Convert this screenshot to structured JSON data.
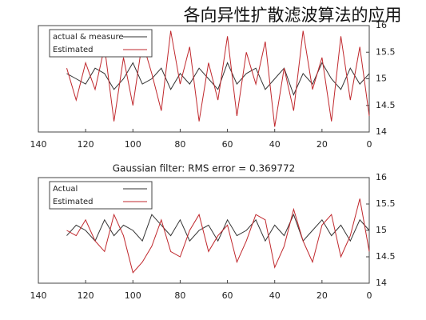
{
  "headline": "各向异性扩散滤波算法的应用",
  "chart_data": [
    {
      "type": "line",
      "x": [
        0,
        4,
        8,
        12,
        16,
        20,
        24,
        28,
        32,
        36,
        40,
        44,
        48,
        52,
        56,
        60,
        64,
        68,
        72,
        76,
        80,
        84,
        88,
        92,
        96,
        100,
        104,
        108,
        112,
        116,
        120,
        124,
        128
      ],
      "xlim": [
        140,
        0
      ],
      "xticks": [
        140,
        120,
        100,
        80,
        60,
        40,
        20,
        0
      ],
      "ylim": [
        14,
        16
      ],
      "yticks": [
        16,
        15.5,
        15,
        14.5,
        14
      ],
      "legend": "top-left",
      "series": [
        {
          "name": "actual & measure",
          "color": "#333333",
          "values": [
            15.1,
            14.9,
            15.2,
            14.8,
            15.0,
            15.3,
            14.9,
            15.1,
            14.7,
            15.2,
            15.0,
            14.8,
            15.2,
            15.1,
            14.9,
            15.3,
            14.8,
            15.0,
            15.2,
            14.9,
            15.1,
            14.8,
            15.2,
            15.0,
            14.9,
            15.3,
            15.0,
            14.8,
            15.1,
            15.2,
            14.9,
            15.0,
            15.1
          ]
        },
        {
          "name": "Estimated",
          "color": "#c0282d",
          "values": [
            14.3,
            15.6,
            14.6,
            15.8,
            14.2,
            15.4,
            14.8,
            15.9,
            14.4,
            15.2,
            14.1,
            15.7,
            14.9,
            15.5,
            14.3,
            15.8,
            14.6,
            15.3,
            14.2,
            15.6,
            14.9,
            15.9,
            14.4,
            15.1,
            15.7,
            14.5,
            15.4,
            14.2,
            15.6,
            14.8,
            15.3,
            14.6,
            15.2
          ]
        }
      ]
    },
    {
      "type": "line",
      "title": "Gaussian filter: RMS error = 0.369772",
      "x": [
        0,
        4,
        8,
        12,
        16,
        20,
        24,
        28,
        32,
        36,
        40,
        44,
        48,
        52,
        56,
        60,
        64,
        68,
        72,
        76,
        80,
        84,
        88,
        92,
        96,
        100,
        104,
        108,
        112,
        116,
        120,
        124,
        128
      ],
      "xlim": [
        140,
        0
      ],
      "xticks": [
        140,
        120,
        100,
        80,
        60,
        40,
        20,
        0
      ],
      "ylim": [
        14,
        16
      ],
      "yticks": [
        16,
        15.5,
        15,
        14.5,
        14
      ],
      "legend": "top-left",
      "series": [
        {
          "name": "Actual",
          "color": "#333333",
          "values": [
            15.0,
            15.2,
            14.8,
            15.1,
            14.9,
            15.2,
            15.0,
            14.8,
            15.3,
            14.9,
            15.1,
            14.8,
            15.2,
            15.0,
            14.9,
            15.2,
            14.8,
            15.1,
            15.0,
            14.8,
            15.2,
            14.9,
            15.1,
            15.3,
            14.8,
            15.0,
            15.1,
            14.9,
            15.2,
            14.8,
            15.0,
            15.1,
            14.9
          ]
        },
        {
          "name": "Estimated",
          "color": "#c0282d",
          "values": [
            14.6,
            15.6,
            14.9,
            14.5,
            15.3,
            15.1,
            14.4,
            14.8,
            15.4,
            14.7,
            14.3,
            15.2,
            15.3,
            14.8,
            14.4,
            15.1,
            14.9,
            14.6,
            15.3,
            15.0,
            14.5,
            14.6,
            15.2,
            14.7,
            14.4,
            14.2,
            14.9,
            15.3,
            14.6,
            14.8,
            15.2,
            14.9,
            15.0
          ]
        }
      ]
    }
  ]
}
